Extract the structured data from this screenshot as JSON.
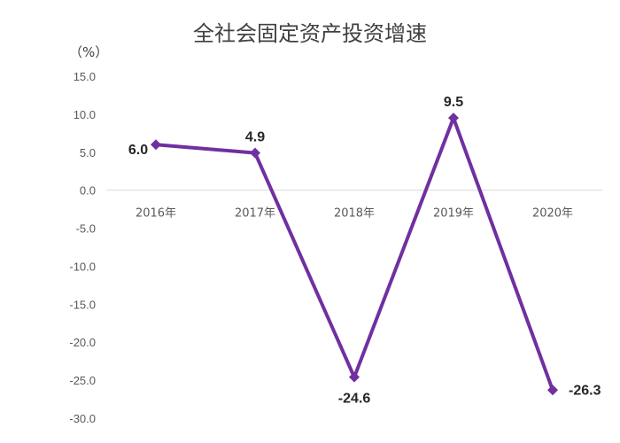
{
  "chart_data": {
    "type": "line",
    "title": "全社会固定资产投资增速",
    "unit_label": "（%）",
    "categories": [
      "2016年",
      "2017年",
      "2018年",
      "2019年",
      "2020年"
    ],
    "series": [
      {
        "values": [
          6.0,
          4.9,
          -24.6,
          9.5,
          -26.3
        ]
      }
    ],
    "data_labels": [
      "6.0",
      "4.9",
      "-24.6",
      "9.5",
      "-26.3"
    ],
    "y_ticks": [
      "15.0",
      "10.0",
      "5.0",
      "0.0",
      "-5.0",
      "-10.0",
      "-15.0",
      "-20.0",
      "-25.0",
      "-30.0"
    ],
    "ylim": [
      -30,
      15
    ],
    "grid": false,
    "legend": "none",
    "colors": {
      "line": "#7030a0",
      "axis": "#d9d9d9"
    }
  }
}
